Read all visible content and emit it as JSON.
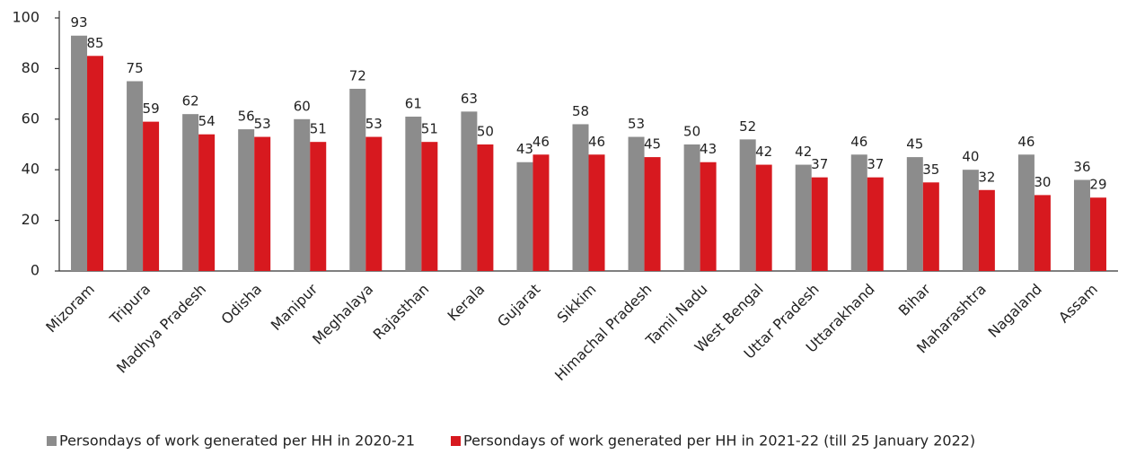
{
  "chart_data": {
    "type": "bar",
    "categories": [
      "Mizoram",
      "Tripura",
      "Madhya Pradesh",
      "Odisha",
      "Manipur",
      "Meghalaya",
      "Rajasthan",
      "Kerala",
      "Gujarat",
      "Sikkim",
      "Himachal Pradesh",
      "Tamil Nadu",
      "West Bengal",
      "Uttar Pradesh",
      "Uttarakhand",
      "Bihar",
      "Maharashtra",
      "Nagaland",
      "Assam"
    ],
    "series": [
      {
        "name": "Persondays of work generated per HH in 2020-21",
        "color": "#8c8c8c",
        "values": [
          93,
          75,
          62,
          56,
          60,
          72,
          61,
          63,
          43,
          58,
          53,
          50,
          52,
          42,
          46,
          45,
          40,
          46,
          36
        ]
      },
      {
        "name": "Persondays of work generated per HH in 2021-22 (till 25 January 2022)",
        "color": "#d7191f",
        "values": [
          85,
          59,
          54,
          53,
          51,
          53,
          51,
          50,
          46,
          46,
          45,
          43,
          42,
          37,
          37,
          35,
          32,
          30,
          29
        ]
      }
    ],
    "ylim": [
      0,
      100
    ],
    "yticks": [
      0,
      20,
      40,
      60,
      80,
      100
    ],
    "grid": false,
    "legend": "bottom"
  }
}
